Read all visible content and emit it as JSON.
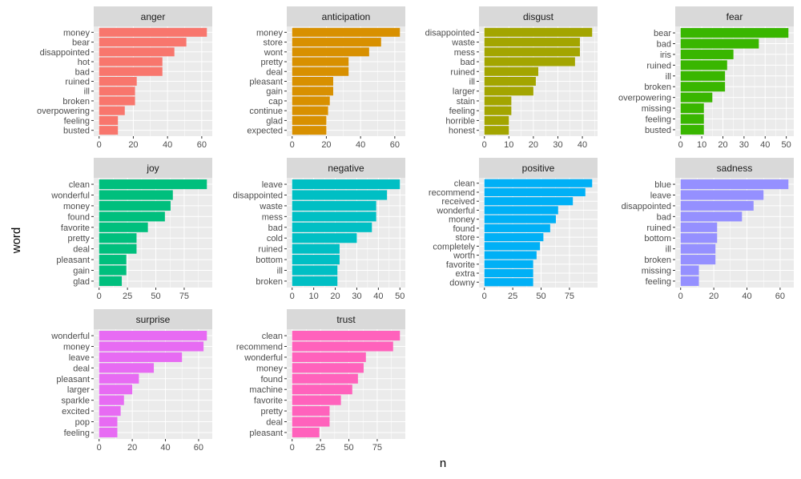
{
  "chart_data": {
    "type": "bar",
    "orientation": "horizontal",
    "facets": "free scales",
    "xlabel": "word",
    "ylabel": "n",
    "grid": true,
    "legend": "none",
    "panels": [
      {
        "title": "anger",
        "color": "#F8766D",
        "ticks": [
          0,
          20,
          40,
          60
        ],
        "categories": [
          "money",
          "bear",
          "disappointed",
          "hot",
          "bad",
          "ruined",
          "ill",
          "broken",
          "overpowering",
          "feeling",
          "busted"
        ],
        "values": [
          63,
          51,
          44,
          37,
          37,
          22,
          21,
          21,
          15,
          11,
          11
        ]
      },
      {
        "title": "anticipation",
        "color": "#D89000",
        "ticks": [
          0,
          20,
          40,
          60
        ],
        "categories": [
          "money",
          "store",
          "wont",
          "pretty",
          "deal",
          "pleasant",
          "gain",
          "cap",
          "continue",
          "glad",
          "expected"
        ],
        "values": [
          63,
          52,
          45,
          33,
          33,
          24,
          24,
          22,
          21,
          20,
          20
        ]
      },
      {
        "title": "disgust",
        "color": "#A3A500",
        "ticks": [
          0,
          10,
          20,
          30,
          40
        ],
        "categories": [
          "disappointed",
          "waste",
          "mess",
          "bad",
          "ruined",
          "ill",
          "larger",
          "stain",
          "feeling",
          "horrible",
          "honest"
        ],
        "values": [
          44,
          39,
          39,
          37,
          22,
          21,
          20,
          11,
          11,
          10,
          10
        ]
      },
      {
        "title": "fear",
        "color": "#39B600",
        "ticks": [
          0,
          10,
          20,
          30,
          40,
          50
        ],
        "categories": [
          "bear",
          "bad",
          "iris",
          "ruined",
          "ill",
          "broken",
          "overpowering",
          "missing",
          "feeling",
          "busted"
        ],
        "values": [
          51,
          37,
          25,
          22,
          21,
          21,
          15,
          11,
          11,
          11
        ]
      },
      {
        "title": "joy",
        "color": "#00BF7D",
        "ticks": [
          0,
          25,
          50,
          75
        ],
        "categories": [
          "clean",
          "wonderful",
          "money",
          "found",
          "favorite",
          "pretty",
          "deal",
          "pleasant",
          "gain",
          "glad"
        ],
        "values": [
          95,
          65,
          63,
          58,
          43,
          33,
          33,
          24,
          24,
          20
        ]
      },
      {
        "title": "negative",
        "color": "#00BFC4",
        "ticks": [
          0,
          10,
          20,
          30,
          40,
          50
        ],
        "categories": [
          "leave",
          "disappointed",
          "waste",
          "mess",
          "bad",
          "cold",
          "ruined",
          "bottom",
          "ill",
          "broken"
        ],
        "values": [
          50,
          44,
          39,
          39,
          37,
          30,
          22,
          22,
          21,
          21
        ]
      },
      {
        "title": "positive",
        "color": "#00B0F6",
        "ticks": [
          0,
          25,
          50,
          75
        ],
        "categories": [
          "clean",
          "recommend",
          "received",
          "wonderful",
          "money",
          "found",
          "store",
          "completely",
          "worth",
          "favorite",
          "extra",
          "downy"
        ],
        "values": [
          95,
          89,
          78,
          65,
          63,
          58,
          52,
          49,
          46,
          43,
          43,
          43
        ]
      },
      {
        "title": "sadness",
        "color": "#9590FF",
        "ticks": [
          0,
          20,
          40,
          60
        ],
        "categories": [
          "blue",
          "leave",
          "disappointed",
          "bad",
          "ruined",
          "bottom",
          "ill",
          "broken",
          "missing",
          "feeling"
        ],
        "values": [
          65,
          50,
          44,
          37,
          22,
          22,
          21,
          21,
          11,
          11
        ]
      },
      {
        "title": "surprise",
        "color": "#E76BF3",
        "ticks": [
          0,
          20,
          40,
          60
        ],
        "categories": [
          "wonderful",
          "money",
          "leave",
          "deal",
          "pleasant",
          "larger",
          "sparkle",
          "excited",
          "pop",
          "feeling"
        ],
        "values": [
          65,
          63,
          50,
          33,
          24,
          20,
          15,
          13,
          11,
          11
        ]
      },
      {
        "title": "trust",
        "color": "#FF62BC",
        "ticks": [
          0,
          25,
          50,
          75
        ],
        "categories": [
          "clean",
          "recommend",
          "wonderful",
          "money",
          "found",
          "machine",
          "favorite",
          "pretty",
          "deal",
          "pleasant"
        ],
        "values": [
          95,
          89,
          65,
          63,
          58,
          53,
          43,
          33,
          33,
          24
        ]
      }
    ]
  }
}
